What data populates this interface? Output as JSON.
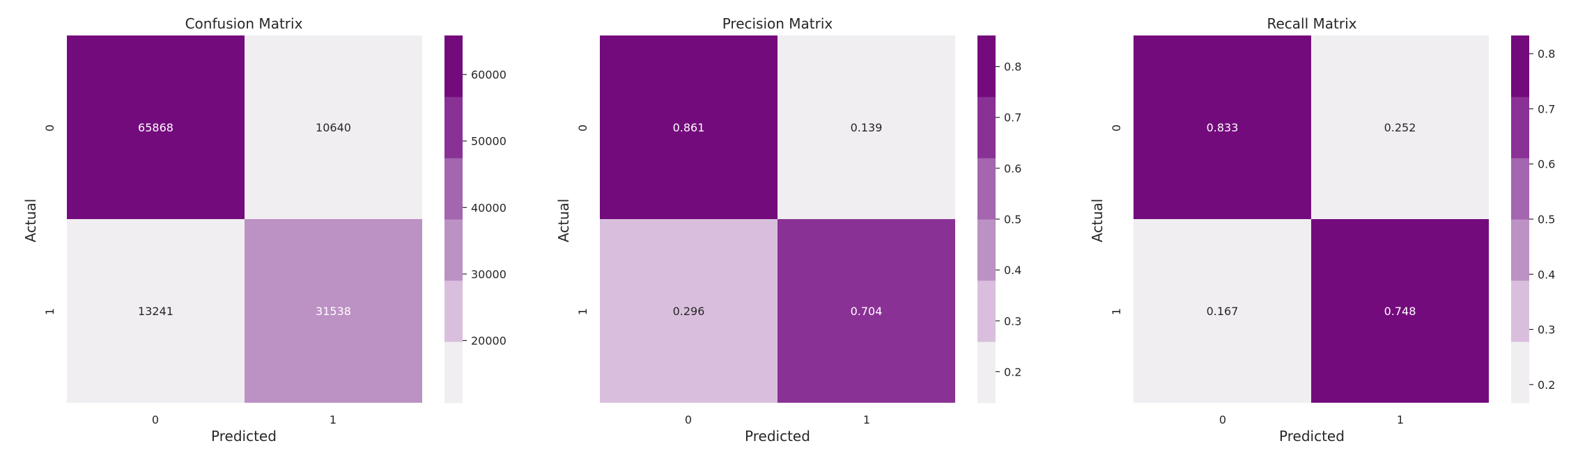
{
  "palette": [
    "#f0eef1",
    "#d9bfdd",
    "#bc91c4",
    "#a466ae",
    "#8a3196",
    "#740b7d"
  ],
  "chart_data": [
    {
      "type": "heatmap",
      "title": "Confusion Matrix",
      "xlabel": "Predicted",
      "ylabel": "Actual",
      "x_categories": [
        "0",
        "1"
      ],
      "y_categories": [
        "0",
        "1"
      ],
      "values": [
        [
          65868,
          10640
        ],
        [
          13241,
          31538
        ]
      ],
      "cell_labels": [
        [
          "65868",
          "10640"
        ],
        [
          "13241",
          "31538"
        ]
      ],
      "colorbar": {
        "range": [
          10640,
          65868
        ],
        "levels": 6,
        "ticks": [
          20000,
          30000,
          40000,
          50000,
          60000
        ],
        "tick_labels": [
          "20000",
          "30000",
          "40000",
          "50000",
          "60000"
        ]
      }
    },
    {
      "type": "heatmap",
      "title": "Precision Matrix",
      "xlabel": "Predicted",
      "ylabel": "Actual",
      "x_categories": [
        "0",
        "1"
      ],
      "y_categories": [
        "0",
        "1"
      ],
      "values": [
        [
          0.861,
          0.139
        ],
        [
          0.296,
          0.704
        ]
      ],
      "cell_labels": [
        [
          "0.861",
          "0.139"
        ],
        [
          "0.296",
          "0.704"
        ]
      ],
      "colorbar": {
        "range": [
          0.139,
          0.861
        ],
        "levels": 6,
        "ticks": [
          0.2,
          0.3,
          0.4,
          0.5,
          0.6,
          0.7,
          0.8
        ],
        "tick_labels": [
          "0.2",
          "0.3",
          "0.4",
          "0.5",
          "0.6",
          "0.7",
          "0.8"
        ]
      }
    },
    {
      "type": "heatmap",
      "title": "Recall Matrix",
      "xlabel": "Predicted",
      "ylabel": "Actual",
      "x_categories": [
        "0",
        "1"
      ],
      "y_categories": [
        "0",
        "1"
      ],
      "values": [
        [
          0.833,
          0.252
        ],
        [
          0.167,
          0.748
        ]
      ],
      "cell_labels": [
        [
          "0.833",
          "0.252"
        ],
        [
          "0.167",
          "0.748"
        ]
      ],
      "colorbar": {
        "range": [
          0.167,
          0.833
        ],
        "levels": 6,
        "ticks": [
          0.2,
          0.3,
          0.4,
          0.5,
          0.6,
          0.7,
          0.8
        ],
        "tick_labels": [
          "0.2",
          "0.3",
          "0.4",
          "0.5",
          "0.6",
          "0.7",
          "0.8"
        ]
      }
    }
  ]
}
